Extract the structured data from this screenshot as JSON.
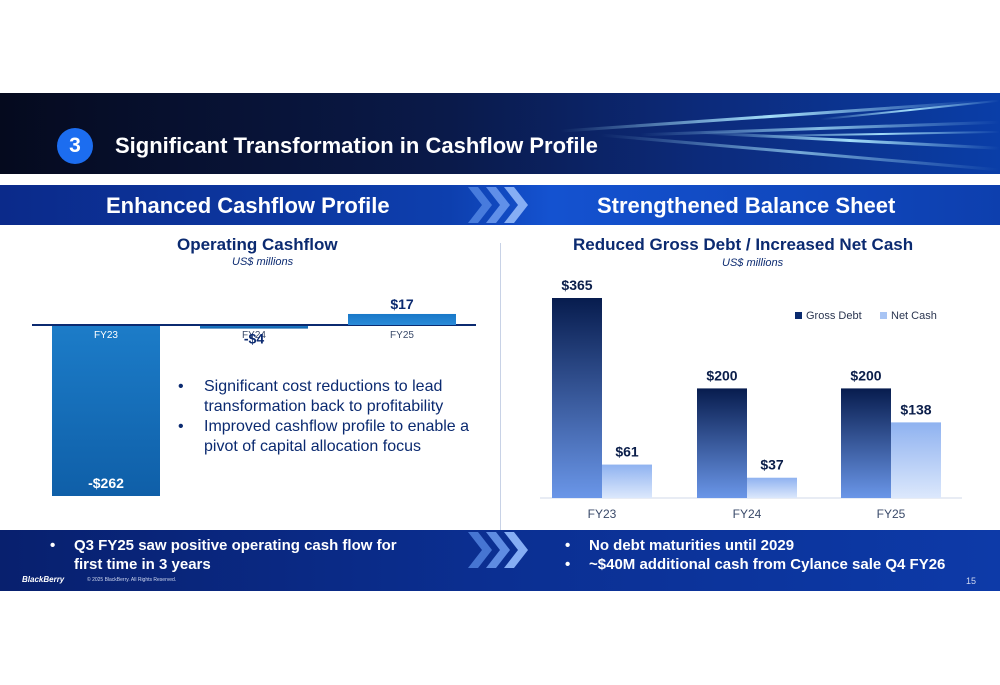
{
  "slide": {
    "section_number": "3",
    "title": "Significant Transformation in Cashflow Profile",
    "left_section": "Enhanced Cashflow Profile",
    "right_section": "Strengthened Balance Sheet",
    "bullets": [
      "Significant cost reductions to lead transformation back to profitability",
      "Improved cashflow profile to enable a pivot of capital allocation focus"
    ],
    "bottom_left": [
      "Q3 FY25 saw positive operating cash flow for",
      "first time in 3 years"
    ],
    "bottom_right": [
      "No debt maturities until 2029",
      "~$40M additional cash from Cylance sale Q4 FY26"
    ],
    "footer_logo": "BlackBerry",
    "footer_copy": "© 2025 BlackBerry. All Rights Reserved.",
    "page_number": "15",
    "bullet_char": "•"
  },
  "colors": {
    "primary_navy": "#0b2a70",
    "bar_blue": "#1878c8",
    "gross_debt": "#0a2a6e",
    "net_cash": "#a8c4f4"
  },
  "chart_data": [
    {
      "type": "bar",
      "title": "Operating Cashflow",
      "subtitle": "US$ millions",
      "categories": [
        "FY23",
        "FY24",
        "FY25"
      ],
      "values": [
        -262,
        -4,
        17
      ],
      "data_labels": [
        "-$262",
        "-$4",
        "$17"
      ]
    },
    {
      "type": "bar",
      "title": "Reduced Gross Debt / Increased Net Cash",
      "subtitle": "US$ millions",
      "categories": [
        "FY23",
        "FY24",
        "FY25"
      ],
      "series": [
        {
          "name": "Gross Debt",
          "values": [
            365,
            200,
            200
          ],
          "labels": [
            "$365",
            "$200",
            "$200"
          ]
        },
        {
          "name": "Net Cash",
          "values": [
            61,
            37,
            138
          ],
          "labels": [
            "$61",
            "$37",
            "$138"
          ]
        }
      ],
      "legend": "top-right"
    }
  ]
}
